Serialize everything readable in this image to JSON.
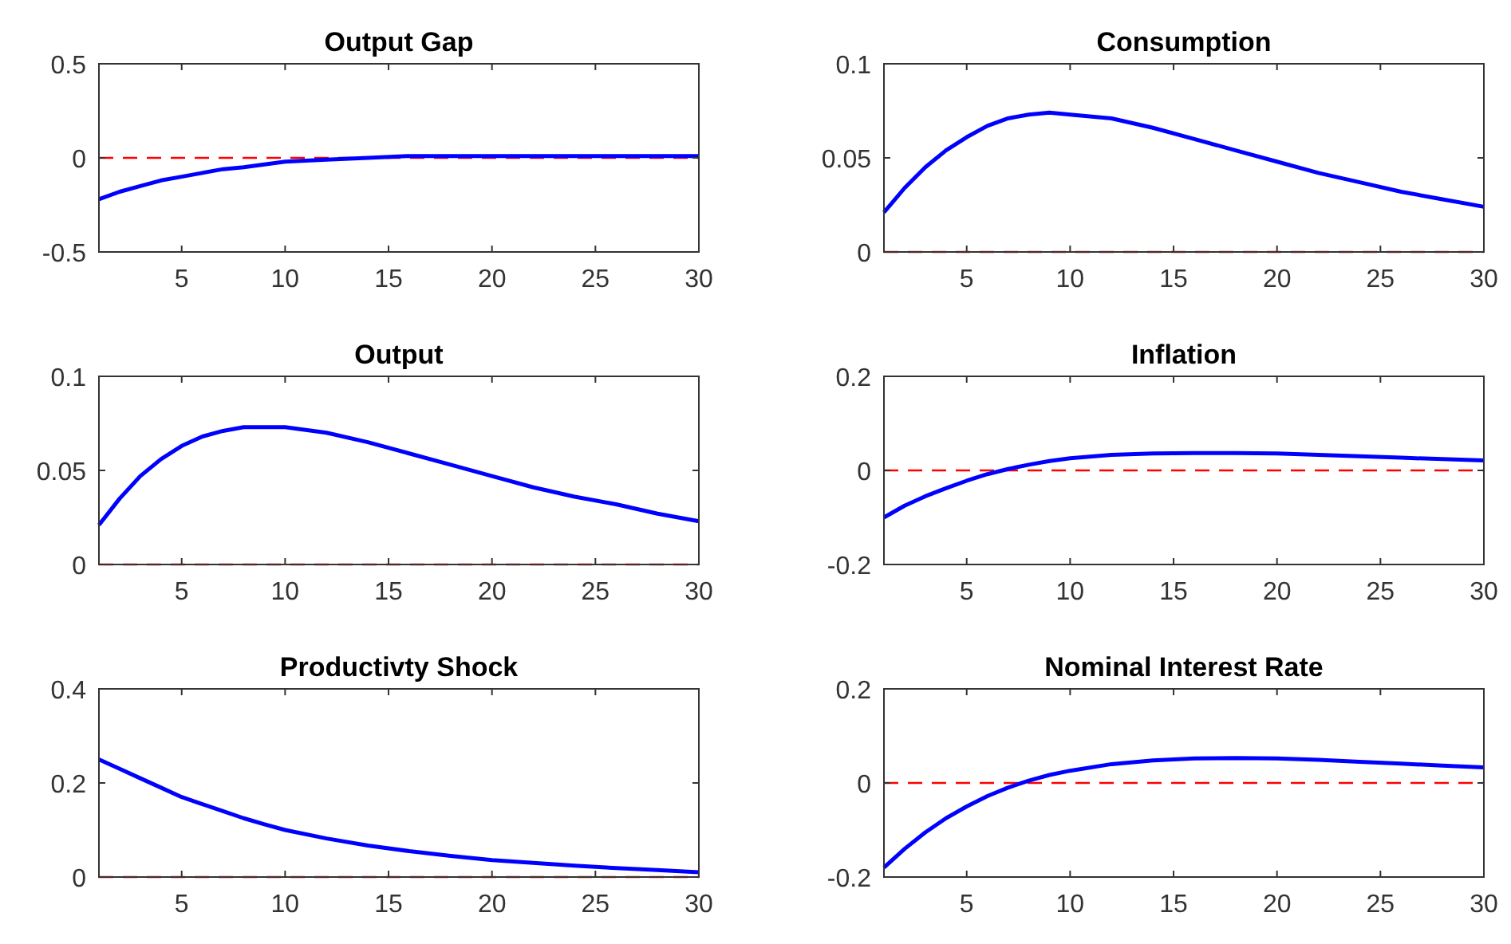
{
  "chart_data": [
    {
      "type": "line",
      "title": "Output Gap",
      "x": [
        1,
        2,
        3,
        4,
        5,
        6,
        7,
        8,
        10,
        12,
        14,
        16,
        18,
        20,
        22,
        24,
        26,
        28,
        30
      ],
      "series": [
        {
          "color": "#0000ff",
          "values": [
            -0.22,
            -0.18,
            -0.15,
            -0.12,
            -0.1,
            -0.08,
            -0.06,
            -0.05,
            -0.02,
            -0.01,
            0,
            0.01,
            0.01,
            0.01,
            0.01,
            0.01,
            0.01,
            0.01,
            0.01
          ]
        }
      ],
      "xlim": [
        1,
        30
      ],
      "xticks": [
        5,
        10,
        15,
        20,
        25,
        30
      ],
      "ylim": [
        -0.5,
        0.5
      ],
      "yticks": [
        -0.5,
        0,
        0.5
      ],
      "ref_lines": [
        {
          "axis": "y",
          "value": 0,
          "color": "#ff0000",
          "line_style": "dashed"
        }
      ]
    },
    {
      "type": "line",
      "title": "Consumption",
      "x": [
        1,
        2,
        3,
        4,
        5,
        6,
        7,
        8,
        9,
        10,
        12,
        14,
        16,
        18,
        20,
        22,
        24,
        26,
        28,
        30
      ],
      "series": [
        {
          "color": "#0000ff",
          "values": [
            0.021,
            0.034,
            0.045,
            0.054,
            0.061,
            0.067,
            0.071,
            0.073,
            0.074,
            0.073,
            0.071,
            0.066,
            0.06,
            0.054,
            0.048,
            0.042,
            0.037,
            0.032,
            0.028,
            0.024
          ]
        }
      ],
      "xlim": [
        1,
        30
      ],
      "xticks": [
        5,
        10,
        15,
        20,
        25,
        30
      ],
      "ylim": [
        0,
        0.1
      ],
      "yticks": [
        0,
        0.05,
        0.1
      ],
      "ref_lines": [
        {
          "axis": "y",
          "value": 0,
          "color": "#ff0000",
          "line_style": "dashed"
        }
      ]
    },
    {
      "type": "line",
      "title": "Output",
      "x": [
        1,
        2,
        3,
        4,
        5,
        6,
        7,
        8,
        9,
        10,
        12,
        14,
        16,
        18,
        20,
        22,
        24,
        26,
        28,
        30
      ],
      "series": [
        {
          "color": "#0000ff",
          "values": [
            0.021,
            0.035,
            0.047,
            0.056,
            0.063,
            0.068,
            0.071,
            0.073,
            0.073,
            0.073,
            0.07,
            0.065,
            0.059,
            0.053,
            0.047,
            0.041,
            0.036,
            0.032,
            0.027,
            0.023
          ]
        }
      ],
      "xlim": [
        1,
        30
      ],
      "xticks": [
        5,
        10,
        15,
        20,
        25,
        30
      ],
      "ylim": [
        0,
        0.1
      ],
      "yticks": [
        0,
        0.05,
        0.1
      ],
      "ref_lines": [
        {
          "axis": "y",
          "value": 0,
          "color": "#ff0000",
          "line_style": "dashed"
        }
      ]
    },
    {
      "type": "line",
      "title": "Inflation",
      "x": [
        1,
        2,
        3,
        4,
        5,
        6,
        7,
        8,
        9,
        10,
        12,
        14,
        16,
        18,
        20,
        22,
        24,
        26,
        28,
        30
      ],
      "series": [
        {
          "color": "#0000ff",
          "values": [
            -0.1,
            -0.075,
            -0.055,
            -0.038,
            -0.022,
            -0.008,
            0.003,
            0.012,
            0.02,
            0.026,
            0.033,
            0.036,
            0.037,
            0.037,
            0.036,
            0.033,
            0.03,
            0.027,
            0.024,
            0.021
          ]
        }
      ],
      "xlim": [
        1,
        30
      ],
      "xticks": [
        5,
        10,
        15,
        20,
        25,
        30
      ],
      "ylim": [
        -0.2,
        0.2
      ],
      "yticks": [
        -0.2,
        0,
        0.2
      ],
      "ref_lines": [
        {
          "axis": "y",
          "value": 0,
          "color": "#ff0000",
          "line_style": "dashed"
        }
      ]
    },
    {
      "type": "line",
      "title": "Productivty Shock",
      "x": [
        1,
        2,
        3,
        4,
        5,
        6,
        7,
        8,
        9,
        10,
        12,
        14,
        16,
        18,
        20,
        22,
        24,
        26,
        28,
        30
      ],
      "series": [
        {
          "color": "#0000ff",
          "values": [
            0.25,
            0.23,
            0.21,
            0.19,
            0.17,
            0.155,
            0.14,
            0.125,
            0.112,
            0.1,
            0.082,
            0.067,
            0.055,
            0.045,
            0.036,
            0.03,
            0.024,
            0.019,
            0.015,
            0.01
          ]
        }
      ],
      "xlim": [
        1,
        30
      ],
      "xticks": [
        5,
        10,
        15,
        20,
        25,
        30
      ],
      "ylim": [
        0,
        0.4
      ],
      "yticks": [
        0,
        0.2,
        0.4
      ],
      "ref_lines": [
        {
          "axis": "y",
          "value": 0,
          "color": "#ff0000",
          "line_style": "dashed"
        }
      ]
    },
    {
      "type": "line",
      "title": "Nominal Interest Rate",
      "x": [
        1,
        2,
        3,
        4,
        5,
        6,
        7,
        8,
        9,
        10,
        12,
        14,
        16,
        18,
        20,
        22,
        24,
        26,
        28,
        30
      ],
      "series": [
        {
          "color": "#0000ff",
          "values": [
            -0.18,
            -0.14,
            -0.105,
            -0.075,
            -0.05,
            -0.028,
            -0.01,
            0.005,
            0.017,
            0.026,
            0.04,
            0.048,
            0.052,
            0.053,
            0.052,
            0.049,
            0.045,
            0.041,
            0.037,
            0.033
          ]
        }
      ],
      "xlim": [
        1,
        30
      ],
      "xticks": [
        5,
        10,
        15,
        20,
        25,
        30
      ],
      "ylim": [
        -0.2,
        0.2
      ],
      "yticks": [
        -0.2,
        0,
        0.2
      ],
      "ref_lines": [
        {
          "axis": "y",
          "value": 0,
          "color": "#ff0000",
          "line_style": "dashed"
        }
      ]
    }
  ]
}
